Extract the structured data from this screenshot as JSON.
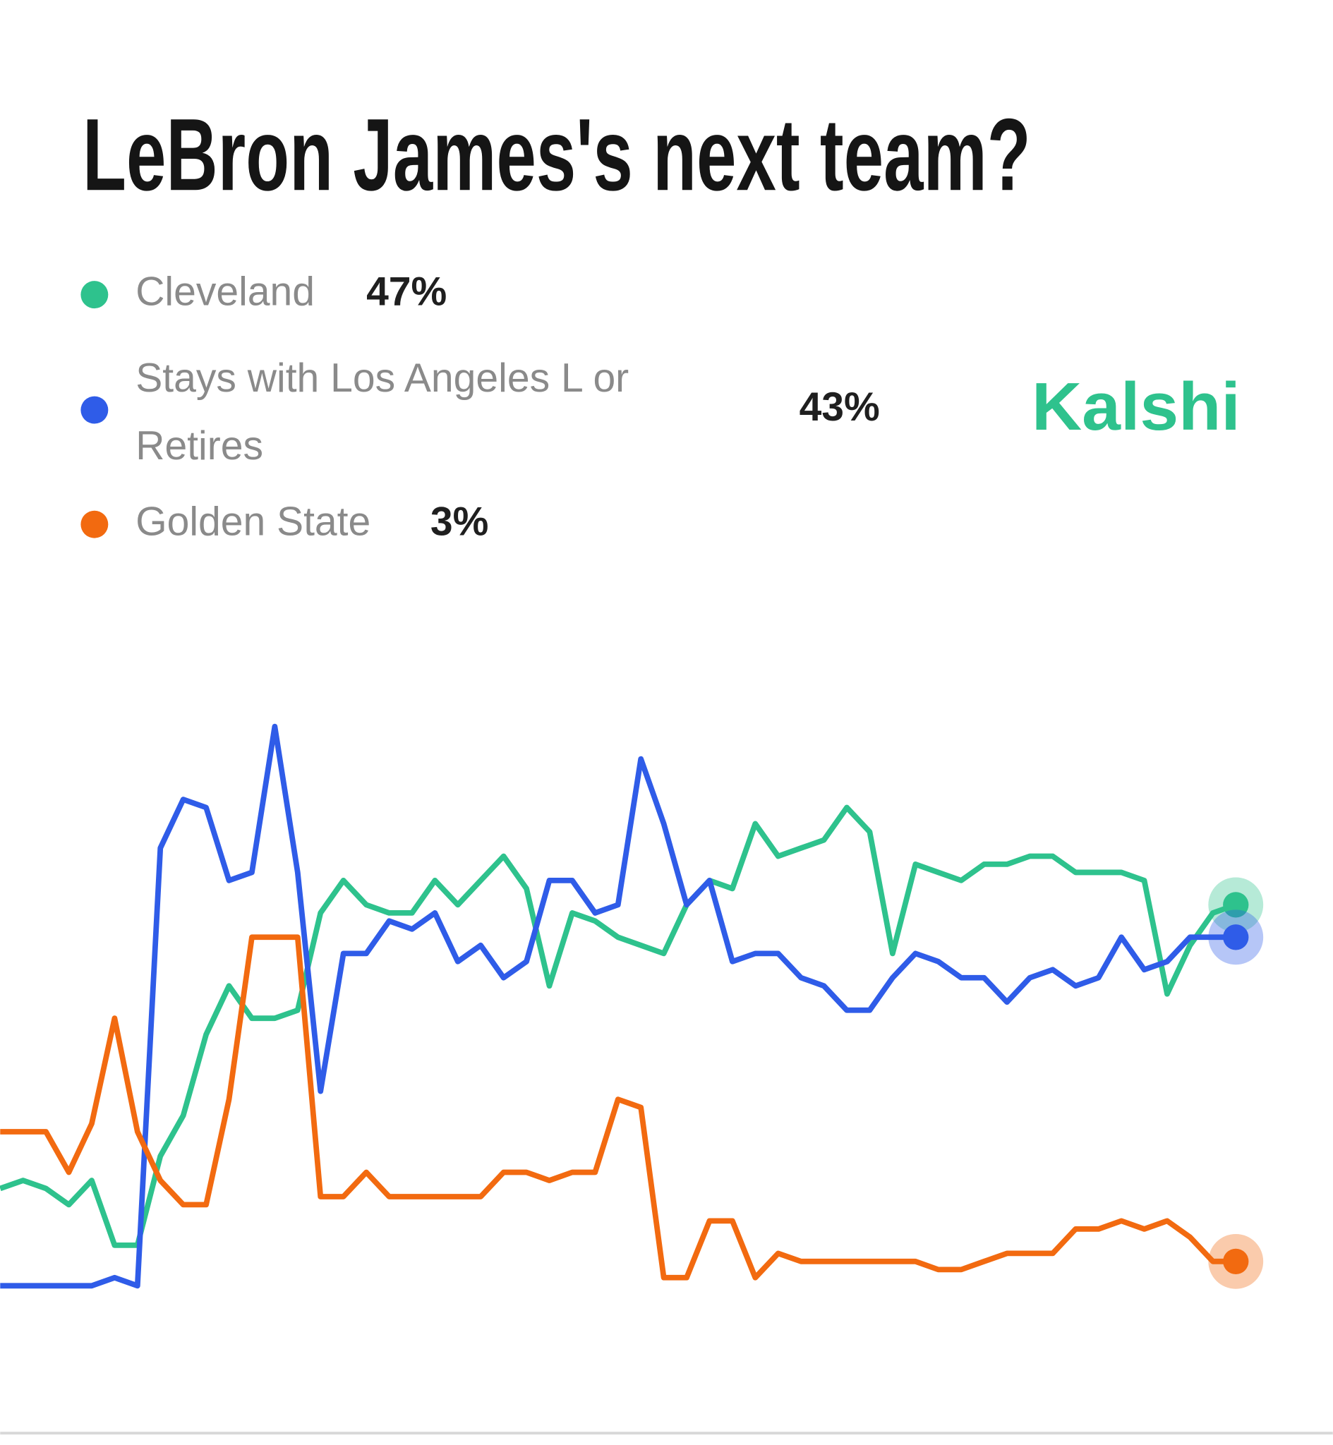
{
  "chart_data": {
    "type": "line",
    "title": "LeBron James's next team?",
    "source": "Kalshi",
    "ylim": [
      0,
      70
    ],
    "series": [
      {
        "name": "Cleveland",
        "current_label": "47%",
        "color": "#2ec28d",
        "values": [
          12,
          13,
          12,
          10,
          13,
          5,
          5,
          16,
          21,
          31,
          37,
          33,
          33,
          34,
          46,
          50,
          47,
          46,
          46,
          50,
          47,
          50,
          53,
          49,
          37,
          46,
          45,
          43,
          42,
          41,
          47,
          50,
          49,
          57,
          53,
          54,
          55,
          59,
          56,
          41,
          52,
          51,
          50,
          52,
          52,
          53,
          53,
          51,
          51,
          51,
          50,
          36,
          42,
          46,
          47
        ]
      },
      {
        "name": "Stays with Los Angeles L or Retires",
        "current_label": "43%",
        "color": "#2f5ce8",
        "values": [
          0,
          0,
          0,
          0,
          0,
          1,
          0,
          54,
          60,
          59,
          50,
          51,
          69,
          51,
          24,
          41,
          41,
          45,
          44,
          46,
          40,
          42,
          38,
          40,
          50,
          50,
          46,
          47,
          65,
          57,
          47,
          50,
          40,
          41,
          41,
          38,
          37,
          34,
          34,
          38,
          41,
          40,
          38,
          38,
          35,
          38,
          39,
          37,
          38,
          43,
          39,
          40,
          43,
          43,
          43
        ]
      },
      {
        "name": "Golden State",
        "current_label": "3%",
        "color": "#f26a10",
        "values": [
          19,
          19,
          19,
          14,
          20,
          33,
          19,
          13,
          10,
          10,
          23,
          43,
          43,
          43,
          11,
          11,
          14,
          11,
          11,
          11,
          11,
          11,
          14,
          14,
          13,
          14,
          14,
          23,
          22,
          1,
          1,
          8,
          8,
          1,
          4,
          3,
          3,
          3,
          3,
          3,
          3,
          2,
          2,
          3,
          4,
          4,
          4,
          7,
          7,
          8,
          7,
          8,
          6,
          3,
          3
        ]
      }
    ]
  }
}
